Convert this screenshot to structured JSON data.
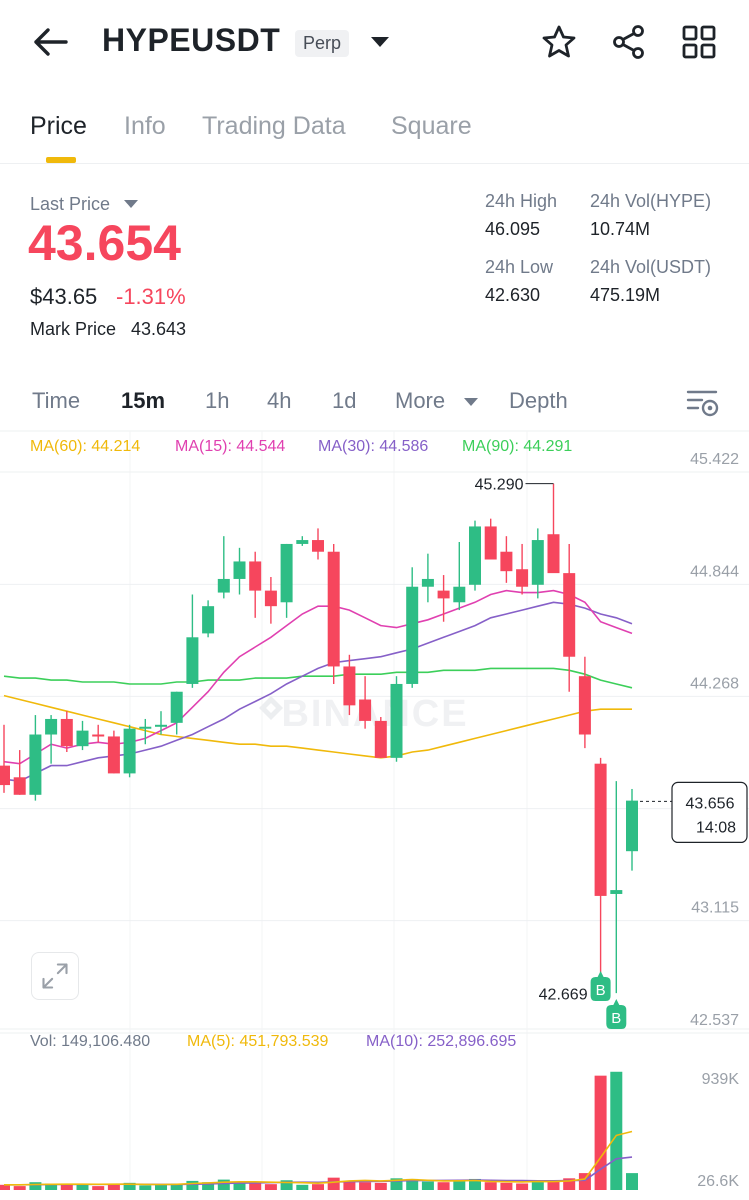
{
  "header": {
    "title": "HYPEUSDT",
    "badge": "Perp"
  },
  "tabs": [
    "Price",
    "Info",
    "Trading Data",
    "Square"
  ],
  "ticker": {
    "last_price_label": "Last Price",
    "last_price": "43.654",
    "usd_price": "$43.65",
    "change": "-1.31%",
    "mark_price_label": "Mark Price",
    "mark_price": "43.643",
    "high_label": "24h High",
    "high": "46.095",
    "low_label": "24h Low",
    "low": "42.630",
    "vol_hype_label": "24h Vol(HYPE)",
    "vol_hype": "10.74M",
    "vol_usdt_label": "24h Vol(USDT)",
    "vol_usdt": "475.19M"
  },
  "intervals": [
    "Time",
    "15m",
    "1h",
    "4h",
    "1d",
    "More",
    "Depth"
  ],
  "colors": {
    "up": "#2ebd85",
    "down": "#f6465d",
    "ma60": "#f0b90b",
    "ma15": "#e040b0",
    "ma30": "#8660c8",
    "ma90": "#3ccf5a",
    "accent": "#f0b90b"
  },
  "ma_legend": {
    "ma60": "MA(60): 44.214",
    "ma15": "MA(15): 44.544",
    "ma30": "MA(30): 44.586",
    "ma90": "MA(90): 44.291"
  },
  "vol_legend": {
    "vol": "Vol: 149,106.480",
    "ma5": "MA(5): 451,793.539",
    "ma10": "MA(10): 252,896.695"
  },
  "watermark": "BINANCE",
  "chart_data": {
    "type": "candlestick",
    "price_ticks": [
      "45.422",
      "44.844",
      "44.268",
      "43.691",
      "43.115",
      "42.537"
    ],
    "volume_ticks": [
      "939K",
      "26.6K"
    ],
    "high_label": "45.290",
    "low_label": "42.669",
    "current_price": "43.656",
    "countdown": "14:08",
    "trade_marker": "B",
    "candles": [
      {
        "o": 43.84,
        "h": 44.05,
        "l": 43.7,
        "c": 43.74
      },
      {
        "o": 43.78,
        "h": 43.92,
        "l": 43.69,
        "c": 43.69
      },
      {
        "o": 43.69,
        "h": 44.1,
        "l": 43.66,
        "c": 44.0
      },
      {
        "o": 44.0,
        "h": 44.1,
        "l": 43.85,
        "c": 44.08
      },
      {
        "o": 44.08,
        "h": 44.12,
        "l": 43.91,
        "c": 43.94
      },
      {
        "o": 43.94,
        "h": 44.07,
        "l": 43.92,
        "c": 44.02
      },
      {
        "o": 44.0,
        "h": 44.05,
        "l": 43.96,
        "c": 43.99
      },
      {
        "o": 43.99,
        "h": 44.02,
        "l": 43.8,
        "c": 43.8
      },
      {
        "o": 43.8,
        "h": 44.05,
        "l": 43.78,
        "c": 44.03
      },
      {
        "o": 44.04,
        "h": 44.08,
        "l": 43.95,
        "c": 44.04
      },
      {
        "o": 44.05,
        "h": 44.12,
        "l": 44.0,
        "c": 44.05
      },
      {
        "o": 44.06,
        "h": 44.22,
        "l": 44.0,
        "c": 44.22
      },
      {
        "o": 44.26,
        "h": 44.72,
        "l": 44.24,
        "c": 44.5
      },
      {
        "o": 44.52,
        "h": 44.69,
        "l": 44.5,
        "c": 44.66
      },
      {
        "o": 44.73,
        "h": 45.02,
        "l": 44.7,
        "c": 44.8
      },
      {
        "o": 44.8,
        "h": 44.96,
        "l": 44.72,
        "c": 44.89
      },
      {
        "o": 44.89,
        "h": 44.94,
        "l": 44.6,
        "c": 44.74
      },
      {
        "o": 44.74,
        "h": 44.81,
        "l": 44.57,
        "c": 44.66
      },
      {
        "o": 44.68,
        "h": 44.98,
        "l": 44.6,
        "c": 44.98
      },
      {
        "o": 44.98,
        "h": 45.02,
        "l": 44.97,
        "c": 45.0
      },
      {
        "o": 45.0,
        "h": 45.06,
        "l": 44.9,
        "c": 44.94
      },
      {
        "o": 44.94,
        "h": 44.98,
        "l": 44.26,
        "c": 44.35
      },
      {
        "o": 44.35,
        "h": 44.41,
        "l": 44.1,
        "c": 44.15
      },
      {
        "o": 44.18,
        "h": 44.3,
        "l": 44.03,
        "c": 44.07
      },
      {
        "o": 44.07,
        "h": 44.09,
        "l": 43.88,
        "c": 43.88
      },
      {
        "o": 43.88,
        "h": 44.3,
        "l": 43.86,
        "c": 44.26
      },
      {
        "o": 44.26,
        "h": 44.86,
        "l": 44.24,
        "c": 44.76
      },
      {
        "o": 44.76,
        "h": 44.93,
        "l": 44.68,
        "c": 44.8
      },
      {
        "o": 44.74,
        "h": 44.82,
        "l": 44.58,
        "c": 44.7
      },
      {
        "o": 44.68,
        "h": 44.99,
        "l": 44.64,
        "c": 44.76
      },
      {
        "o": 44.77,
        "h": 45.1,
        "l": 44.74,
        "c": 45.07
      },
      {
        "o": 45.07,
        "h": 45.11,
        "l": 44.9,
        "c": 44.9
      },
      {
        "o": 44.94,
        "h": 45.02,
        "l": 44.78,
        "c": 44.84
      },
      {
        "o": 44.85,
        "h": 44.98,
        "l": 44.72,
        "c": 44.76
      },
      {
        "o": 44.77,
        "h": 45.06,
        "l": 44.7,
        "c": 45.0
      },
      {
        "o": 45.03,
        "h": 45.29,
        "l": 44.85,
        "c": 44.83
      },
      {
        "o": 44.83,
        "h": 44.98,
        "l": 44.22,
        "c": 44.4
      },
      {
        "o": 44.3,
        "h": 44.4,
        "l": 43.93,
        "c": 44.0
      },
      {
        "o": 43.85,
        "h": 43.88,
        "l": 42.65,
        "c": 43.17
      },
      {
        "o": 43.18,
        "h": 43.76,
        "l": 42.67,
        "c": 43.2
      },
      {
        "o": 43.4,
        "h": 43.72,
        "l": 43.3,
        "c": 43.66
      }
    ],
    "volume": [
      40,
      30,
      60,
      50,
      40,
      50,
      30,
      45,
      55,
      35,
      40,
      50,
      70,
      60,
      80,
      55,
      50,
      45,
      75,
      40,
      45,
      95,
      70,
      60,
      55,
      90,
      85,
      65,
      60,
      70,
      85,
      60,
      55,
      50,
      70,
      75,
      90,
      130,
      880,
      910,
      130
    ],
    "ma15": [
      43.86,
      43.85,
      43.9,
      43.95,
      43.93,
      43.95,
      43.96,
      43.95,
      43.96,
      43.98,
      44.02,
      44.06,
      44.14,
      44.22,
      44.32,
      44.4,
      44.45,
      44.5,
      44.56,
      44.62,
      44.66,
      44.66,
      44.64,
      44.6,
      44.56,
      44.55,
      44.57,
      44.59,
      44.62,
      44.65,
      44.68,
      44.72,
      44.74,
      44.73,
      44.73,
      44.74,
      44.72,
      44.68,
      44.58,
      44.55,
      44.52
    ],
    "ma30": [
      43.77,
      43.76,
      43.8,
      43.84,
      43.84,
      43.86,
      43.88,
      43.89,
      43.9,
      43.92,
      43.94,
      43.97,
      44.0,
      44.04,
      44.08,
      44.13,
      44.17,
      44.21,
      44.26,
      44.3,
      44.34,
      44.37,
      44.38,
      44.39,
      44.4,
      44.42,
      44.44,
      44.47,
      44.5,
      44.53,
      44.56,
      44.6,
      44.62,
      44.64,
      44.66,
      44.68,
      44.67,
      44.65,
      44.62,
      44.6,
      44.57
    ],
    "ma60": [
      44.2,
      44.18,
      44.16,
      44.14,
      44.12,
      44.1,
      44.08,
      44.06,
      44.04,
      44.02,
      44.0,
      43.99,
      43.98,
      43.97,
      43.96,
      43.95,
      43.95,
      43.94,
      43.94,
      43.93,
      43.92,
      43.91,
      43.9,
      43.89,
      43.88,
      43.89,
      43.91,
      43.92,
      43.94,
      43.96,
      43.98,
      44.0,
      44.02,
      44.04,
      44.06,
      44.08,
      44.1,
      44.12,
      44.13,
      44.13,
      44.13
    ],
    "ma90": [
      44.3,
      44.29,
      44.29,
      44.28,
      44.28,
      44.27,
      44.27,
      44.27,
      44.26,
      44.26,
      44.26,
      44.27,
      44.27,
      44.28,
      44.28,
      44.28,
      44.29,
      44.29,
      44.29,
      44.3,
      44.3,
      44.3,
      44.31,
      44.31,
      44.31,
      44.32,
      44.32,
      44.32,
      44.33,
      44.33,
      44.33,
      44.34,
      44.34,
      44.34,
      44.34,
      44.34,
      44.33,
      44.31,
      44.28,
      44.26,
      44.24
    ],
    "vol_ma5": [
      40,
      40,
      42,
      44,
      45,
      45,
      44,
      45,
      45,
      43,
      42,
      44,
      50,
      55,
      60,
      63,
      63,
      60,
      58,
      56,
      52,
      60,
      70,
      74,
      70,
      75,
      80,
      75,
      70,
      71,
      73,
      66,
      64,
      62,
      66,
      65,
      70,
      85,
      250,
      420,
      450
    ],
    "vol_ma10": [
      40,
      40,
      41,
      42,
      43,
      44,
      44,
      44,
      45,
      44,
      43,
      43,
      45,
      47,
      50,
      53,
      55,
      57,
      59,
      60,
      59,
      62,
      64,
      66,
      67,
      70,
      72,
      73,
      74,
      75,
      76,
      75,
      73,
      72,
      71,
      71,
      72,
      75,
      160,
      240,
      253
    ]
  }
}
